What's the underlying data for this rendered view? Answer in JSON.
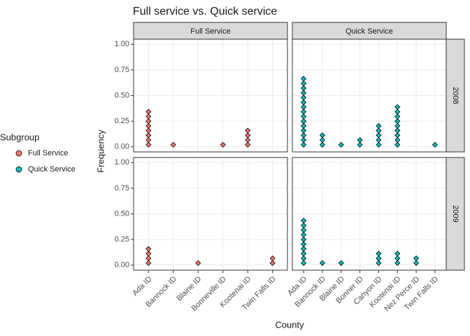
{
  "chart_data": {
    "type": "faceted-dotplot",
    "title": "Full service vs. Quick service",
    "x_label": "County",
    "y_label": "Frequency",
    "legend_title": "Subgroup",
    "ylim": [
      -0.05,
      1.05
    ],
    "yticks": [
      {
        "value": 0,
        "label": "0.00"
      },
      {
        "value": 0.25,
        "label": "0.25"
      },
      {
        "value": 0.5,
        "label": "0.50"
      },
      {
        "value": 0.75,
        "label": "0.75"
      },
      {
        "value": 1,
        "label": "1.00"
      }
    ],
    "grid": true,
    "columns": [
      {
        "name": "Full Service",
        "color": "#f8766d",
        "categories": [
          "Ada ID",
          "Bannock ID",
          "Blaine ID",
          "Bonneville ID",
          "Kootenai ID",
          "Twin Falls ID"
        ]
      },
      {
        "name": "Quick Service",
        "color": "#00bfc4",
        "categories": [
          "Ada ID",
          "Bannock ID",
          "Blaine ID",
          "Bonner ID",
          "Canyon ID",
          "Kootenai ID",
          "Nez Perce ID",
          "Twin Falls ID"
        ]
      }
    ],
    "rows": [
      "2008",
      "2009"
    ],
    "panels": [
      [
        [
          [
            0.02,
            0.066,
            0.112,
            0.158,
            0.204,
            0.25,
            0.296,
            0.342
          ],
          [
            0.02
          ],
          [],
          [
            0.02
          ],
          [
            0.02,
            0.066,
            0.112,
            0.158
          ],
          []
        ],
        [
          [
            0.02,
            0.066,
            0.112,
            0.158,
            0.204,
            0.25,
            0.296,
            0.342,
            0.388,
            0.434,
            0.48,
            0.526,
            0.572,
            0.618,
            0.664
          ],
          [
            0.02,
            0.066,
            0.112
          ],
          [
            0.02
          ],
          [
            0.02,
            0.066
          ],
          [
            0.02,
            0.066,
            0.112,
            0.158,
            0.204
          ],
          [
            0.02,
            0.066,
            0.112,
            0.158,
            0.204,
            0.25,
            0.296,
            0.342,
            0.388
          ],
          [],
          [
            0.02
          ]
        ]
      ],
      [
        [
          [
            0.02,
            0.066,
            0.112,
            0.158
          ],
          [],
          [
            0.02
          ],
          [],
          [],
          [
            0.02,
            0.066
          ]
        ],
        [
          [
            0.02,
            0.066,
            0.112,
            0.158,
            0.204,
            0.25,
            0.296,
            0.342,
            0.388,
            0.434
          ],
          [
            0.02
          ],
          [
            0.02
          ],
          [],
          [
            0.02,
            0.066,
            0.112
          ],
          [
            0.02,
            0.066,
            0.112
          ],
          [
            0.02,
            0.066
          ],
          []
        ]
      ]
    ]
  }
}
